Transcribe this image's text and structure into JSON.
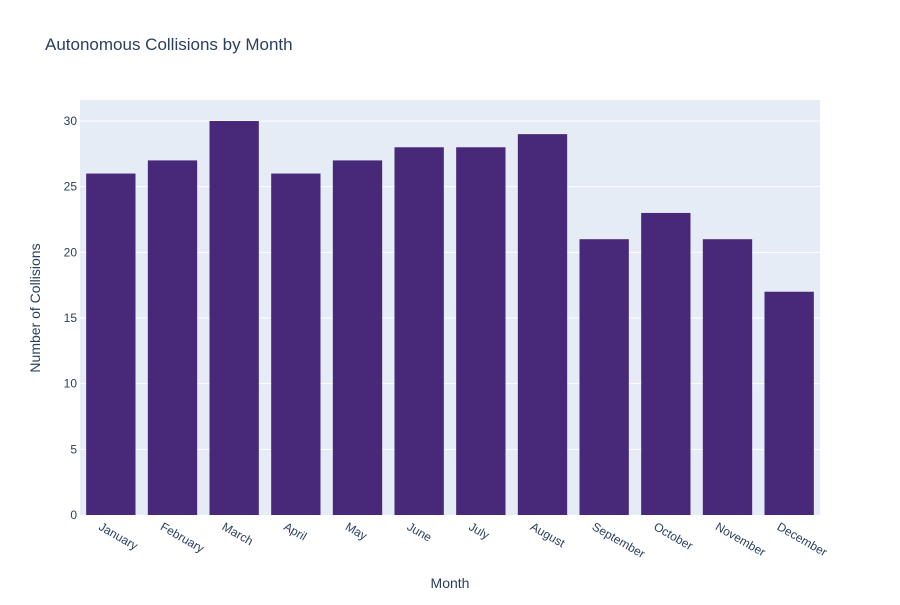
{
  "colors": {
    "bar": "#482878",
    "plot_bg": "#e5ecf6",
    "grid": "#ffffff",
    "title_text": "#2a3f5f",
    "tick_text": "#2a3f5f",
    "paper_bg": "#ffffff"
  },
  "chart_data": {
    "type": "bar",
    "title": "Autonomous Collisions by Month",
    "xlabel": "Month",
    "ylabel": "Number of Collisions",
    "categories": [
      "January",
      "February",
      "March",
      "April",
      "May",
      "June",
      "July",
      "August",
      "September",
      "October",
      "November",
      "December"
    ],
    "values": [
      26,
      27,
      30,
      26,
      27,
      28,
      28,
      29,
      21,
      23,
      21,
      17
    ],
    "ylim": [
      0,
      31.6
    ],
    "yticks": [
      0,
      5,
      10,
      15,
      20,
      25,
      30
    ],
    "grid": true,
    "legend": "none"
  }
}
